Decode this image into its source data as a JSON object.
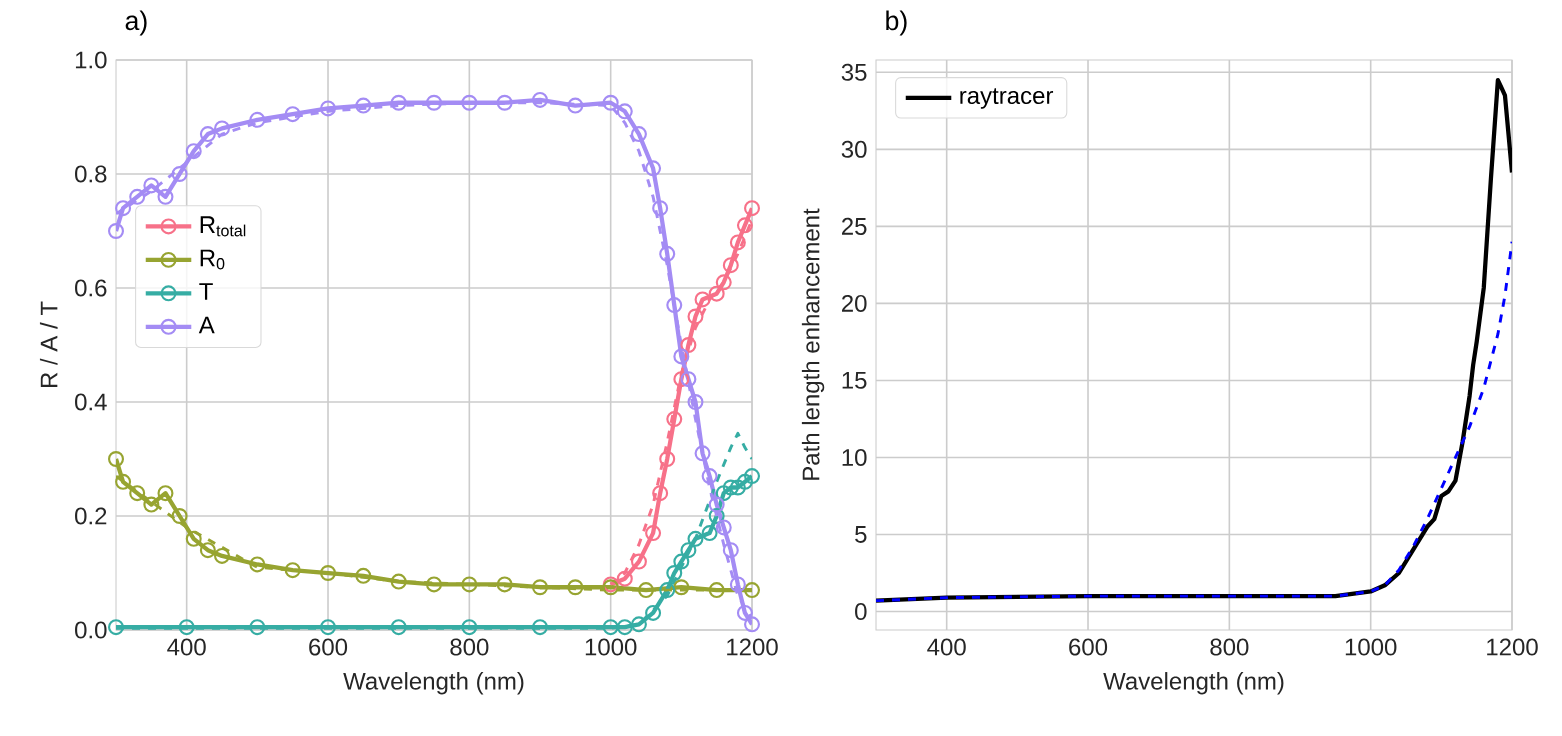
{
  "chart_data": [
    {
      "type": "line",
      "title": "a)",
      "xlabel": "Wavelength (nm)",
      "ylabel": "R / A / T",
      "xlim": [
        300,
        1200
      ],
      "ylim": [
        0,
        1
      ],
      "xticks": [
        400,
        600,
        800,
        1000,
        1200
      ],
      "yticks": [
        {
          "value": 0,
          "label": "0.0"
        },
        {
          "value": 0.2,
          "label": "0.2"
        },
        {
          "value": 0.4,
          "label": "0.4"
        },
        {
          "value": 0.6,
          "label": "0.6"
        },
        {
          "value": 0.8,
          "label": "0.8"
        },
        {
          "value": 1,
          "label": "1.0"
        }
      ],
      "grid": true,
      "legend": "left",
      "series": [
        {
          "name": "R$_{total}$",
          "color": "#f77189",
          "marker": "circle",
          "line_style": "solid",
          "x": [
            1000,
            1020,
            1040,
            1060,
            1070,
            1080,
            1090,
            1100,
            1110,
            1120,
            1130,
            1150,
            1160,
            1170,
            1180,
            1190,
            1200
          ],
          "values": [
            0.08,
            0.09,
            0.12,
            0.17,
            0.24,
            0.3,
            0.37,
            0.44,
            0.5,
            0.55,
            0.58,
            0.59,
            0.61,
            0.64,
            0.68,
            0.71,
            0.74
          ]
        },
        {
          "name": "R$_{0}$",
          "color": "#97a431",
          "marker": "circle",
          "line_style": "solid",
          "x": [
            300,
            310,
            330,
            350,
            370,
            390,
            410,
            430,
            450,
            500,
            550,
            600,
            650,
            700,
            750,
            800,
            850,
            900,
            950,
            1000,
            1050,
            1100,
            1150,
            1200
          ],
          "values": [
            0.3,
            0.26,
            0.24,
            0.22,
            0.24,
            0.2,
            0.16,
            0.14,
            0.13,
            0.115,
            0.105,
            0.1,
            0.095,
            0.085,
            0.08,
            0.08,
            0.08,
            0.075,
            0.075,
            0.075,
            0.07,
            0.075,
            0.07,
            0.07
          ]
        },
        {
          "name": "T",
          "color": "#36ada4",
          "marker": "circle",
          "line_style": "solid",
          "x": [
            300,
            400,
            500,
            600,
            700,
            800,
            900,
            1000,
            1020,
            1040,
            1060,
            1080,
            1090,
            1100,
            1110,
            1120,
            1140,
            1150,
            1160,
            1170,
            1180,
            1190,
            1200
          ],
          "values": [
            0.005,
            0.005,
            0.005,
            0.005,
            0.005,
            0.005,
            0.005,
            0.005,
            0.005,
            0.01,
            0.03,
            0.07,
            0.1,
            0.12,
            0.14,
            0.16,
            0.17,
            0.2,
            0.24,
            0.25,
            0.25,
            0.26,
            0.27
          ]
        },
        {
          "name": "A",
          "color": "#a48cf4",
          "marker": "circle",
          "line_style": "solid",
          "x": [
            300,
            310,
            330,
            350,
            370,
            390,
            410,
            430,
            450,
            500,
            550,
            600,
            650,
            700,
            750,
            800,
            850,
            900,
            950,
            1000,
            1020,
            1040,
            1060,
            1070,
            1080,
            1090,
            1100,
            1110,
            1120,
            1130,
            1140,
            1150,
            1160,
            1170,
            1180,
            1190,
            1200
          ],
          "values": [
            0.7,
            0.74,
            0.76,
            0.78,
            0.76,
            0.8,
            0.84,
            0.87,
            0.88,
            0.895,
            0.905,
            0.915,
            0.92,
            0.925,
            0.925,
            0.925,
            0.925,
            0.93,
            0.92,
            0.925,
            0.91,
            0.87,
            0.81,
            0.74,
            0.66,
            0.57,
            0.48,
            0.44,
            0.4,
            0.31,
            0.27,
            0.22,
            0.18,
            0.14,
            0.08,
            0.03,
            0.01
          ]
        },
        {
          "color": "#f77189",
          "marker": "none",
          "line_style": "dashed",
          "x": [
            1000,
            1020,
            1040,
            1060,
            1080,
            1100,
            1120,
            1140,
            1160,
            1180,
            1200
          ],
          "values": [
            0.08,
            0.1,
            0.15,
            0.22,
            0.33,
            0.45,
            0.53,
            0.58,
            0.61,
            0.66,
            0.72
          ]
        },
        {
          "color": "#97a431",
          "marker": "none",
          "line_style": "dashed",
          "x": [
            300,
            400,
            500,
            600,
            700,
            800,
            900,
            1000,
            1100,
            1200
          ],
          "values": [
            0.27,
            0.18,
            0.11,
            0.1,
            0.085,
            0.08,
            0.075,
            0.07,
            0.07,
            0.07
          ]
        },
        {
          "color": "#36ada4",
          "marker": "none",
          "line_style": "dashed",
          "x": [
            300,
            1000,
            1040,
            1080,
            1120,
            1150,
            1170,
            1180,
            1190,
            1200
          ],
          "values": [
            0.003,
            0.003,
            0.01,
            0.06,
            0.16,
            0.26,
            0.32,
            0.345,
            0.32,
            0.3
          ]
        },
        {
          "color": "#a48cf4",
          "marker": "none",
          "line_style": "dashed",
          "x": [
            300,
            350,
            400,
            450,
            500,
            600,
            700,
            800,
            900,
            1000,
            1020,
            1040,
            1060,
            1080,
            1100,
            1120,
            1140,
            1160,
            1180,
            1200
          ],
          "values": [
            0.73,
            0.77,
            0.82,
            0.87,
            0.89,
            0.91,
            0.92,
            0.925,
            0.925,
            0.92,
            0.89,
            0.84,
            0.76,
            0.64,
            0.5,
            0.37,
            0.25,
            0.15,
            0.06,
            0.02
          ]
        }
      ]
    },
    {
      "type": "line",
      "title": "b)",
      "xlabel": "Wavelength (nm)",
      "ylabel": "Path length enhancement",
      "xlim": [
        300,
        1200
      ],
      "ylim": [
        -1.2,
        35.8
      ],
      "xticks": [
        400,
        600,
        800,
        1000,
        1200
      ],
      "yticks": [
        0,
        5,
        10,
        15,
        20,
        25,
        30,
        35
      ],
      "grid": true,
      "legend": "top left",
      "series": [
        {
          "name": "raytracer",
          "color": "#000000",
          "marker": "none",
          "line_style": "solid",
          "x": [
            300,
            400,
            600,
            800,
            950,
            1000,
            1020,
            1040,
            1060,
            1080,
            1090,
            1100,
            1110,
            1120,
            1130,
            1140,
            1145,
            1150,
            1160,
            1170,
            1180,
            1185,
            1190,
            1200
          ],
          "values": [
            0.7,
            0.9,
            1,
            1,
            1,
            1.3,
            1.7,
            2.5,
            4,
            5.5,
            6,
            7.5,
            7.8,
            8.5,
            11,
            14,
            16,
            17.5,
            21,
            28,
            34.5,
            34,
            33.5,
            28.5
          ]
        },
        {
          "color": "#0000ff",
          "marker": "none",
          "line_style": "dashed",
          "x": [
            300,
            400,
            600,
            800,
            950,
            1000,
            1020,
            1040,
            1060,
            1080,
            1100,
            1120,
            1140,
            1160,
            1180,
            1190,
            1200
          ],
          "values": [
            0.7,
            0.9,
            1.0,
            1.0,
            1.0,
            1.3,
            1.7,
            2.7,
            4.2,
            6,
            8,
            10,
            12,
            14.5,
            18,
            20.5,
            24
          ]
        }
      ]
    }
  ]
}
